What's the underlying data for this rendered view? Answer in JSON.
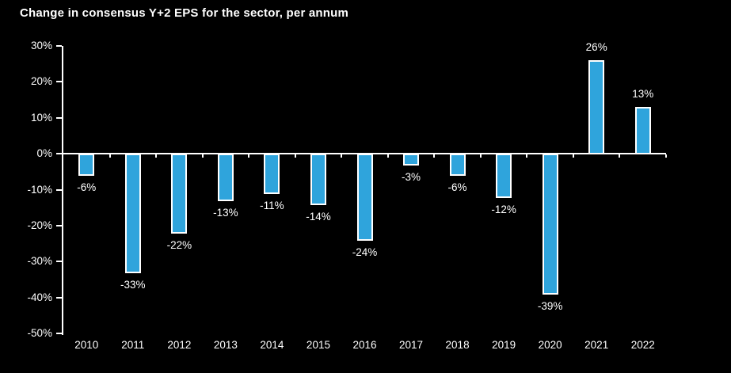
{
  "chart_data": {
    "type": "bar",
    "title": "Change in consensus Y+2 EPS for the sector, per annum",
    "categories": [
      "2010",
      "2011",
      "2012",
      "2013",
      "2014",
      "2015",
      "2016",
      "2017",
      "2018",
      "2019",
      "2020",
      "2021",
      "2022"
    ],
    "values": [
      -6,
      -33,
      -22,
      -13,
      -11,
      -14,
      -24,
      -3,
      -6,
      -12,
      -39,
      26,
      13
    ],
    "value_labels": [
      "-6%",
      "-33%",
      "-22%",
      "-13%",
      "-11%",
      "-14%",
      "-24%",
      "-3%",
      "-6%",
      "-12%",
      "-39%",
      "26%",
      "13%"
    ],
    "xlabel": "",
    "ylabel": "",
    "unit": "%",
    "ylim": [
      -50,
      30
    ],
    "ytick_step": 10,
    "ytick_labels": [
      "30%",
      "20%",
      "10%",
      "0%",
      "-10%",
      "-20%",
      "-30%",
      "-40%",
      "-50%"
    ],
    "grid": false,
    "legend": "none"
  },
  "colors": {
    "background": "#000000",
    "bar_fill": "#2FA4DC",
    "bar_border": "#FFFFFF",
    "axis": "#FFFFFF",
    "text": "#FFFFFF"
  }
}
